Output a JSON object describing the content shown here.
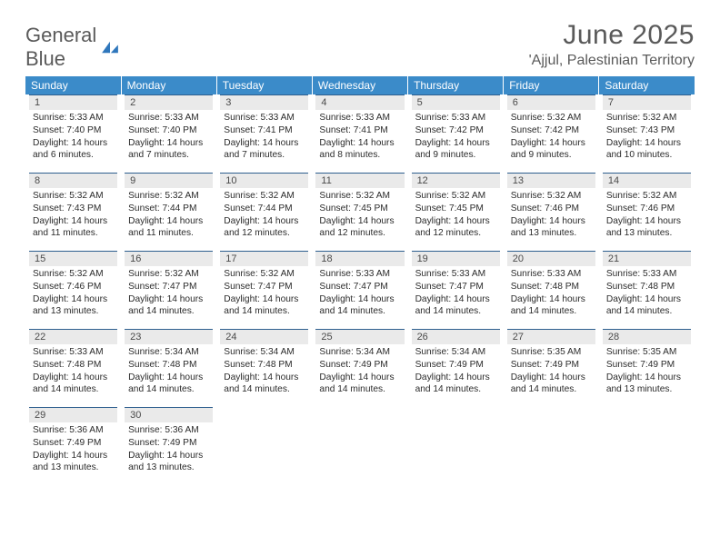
{
  "brand": {
    "name_a": "General",
    "name_b": "Blue"
  },
  "title": "June 2025",
  "location": "'Ajjul, Palestinian Territory",
  "colors": {
    "header_bg": "#3b8bc9",
    "header_text": "#ffffff",
    "daynum_bg": "#eaeaea",
    "rule": "#2e5f8f",
    "brand_gray": "#5a5a5a",
    "brand_blue": "#2f77bc"
  },
  "weekdays": [
    "Sunday",
    "Monday",
    "Tuesday",
    "Wednesday",
    "Thursday",
    "Friday",
    "Saturday"
  ],
  "days": [
    {
      "n": "1",
      "sr": "5:33 AM",
      "ss": "7:40 PM",
      "dl": "14 hours and 6 minutes."
    },
    {
      "n": "2",
      "sr": "5:33 AM",
      "ss": "7:40 PM",
      "dl": "14 hours and 7 minutes."
    },
    {
      "n": "3",
      "sr": "5:33 AM",
      "ss": "7:41 PM",
      "dl": "14 hours and 7 minutes."
    },
    {
      "n": "4",
      "sr": "5:33 AM",
      "ss": "7:41 PM",
      "dl": "14 hours and 8 minutes."
    },
    {
      "n": "5",
      "sr": "5:33 AM",
      "ss": "7:42 PM",
      "dl": "14 hours and 9 minutes."
    },
    {
      "n": "6",
      "sr": "5:32 AM",
      "ss": "7:42 PM",
      "dl": "14 hours and 9 minutes."
    },
    {
      "n": "7",
      "sr": "5:32 AM",
      "ss": "7:43 PM",
      "dl": "14 hours and 10 minutes."
    },
    {
      "n": "8",
      "sr": "5:32 AM",
      "ss": "7:43 PM",
      "dl": "14 hours and 11 minutes."
    },
    {
      "n": "9",
      "sr": "5:32 AM",
      "ss": "7:44 PM",
      "dl": "14 hours and 11 minutes."
    },
    {
      "n": "10",
      "sr": "5:32 AM",
      "ss": "7:44 PM",
      "dl": "14 hours and 12 minutes."
    },
    {
      "n": "11",
      "sr": "5:32 AM",
      "ss": "7:45 PM",
      "dl": "14 hours and 12 minutes."
    },
    {
      "n": "12",
      "sr": "5:32 AM",
      "ss": "7:45 PM",
      "dl": "14 hours and 12 minutes."
    },
    {
      "n": "13",
      "sr": "5:32 AM",
      "ss": "7:46 PM",
      "dl": "14 hours and 13 minutes."
    },
    {
      "n": "14",
      "sr": "5:32 AM",
      "ss": "7:46 PM",
      "dl": "14 hours and 13 minutes."
    },
    {
      "n": "15",
      "sr": "5:32 AM",
      "ss": "7:46 PM",
      "dl": "14 hours and 13 minutes."
    },
    {
      "n": "16",
      "sr": "5:32 AM",
      "ss": "7:47 PM",
      "dl": "14 hours and 14 minutes."
    },
    {
      "n": "17",
      "sr": "5:32 AM",
      "ss": "7:47 PM",
      "dl": "14 hours and 14 minutes."
    },
    {
      "n": "18",
      "sr": "5:33 AM",
      "ss": "7:47 PM",
      "dl": "14 hours and 14 minutes."
    },
    {
      "n": "19",
      "sr": "5:33 AM",
      "ss": "7:47 PM",
      "dl": "14 hours and 14 minutes."
    },
    {
      "n": "20",
      "sr": "5:33 AM",
      "ss": "7:48 PM",
      "dl": "14 hours and 14 minutes."
    },
    {
      "n": "21",
      "sr": "5:33 AM",
      "ss": "7:48 PM",
      "dl": "14 hours and 14 minutes."
    },
    {
      "n": "22",
      "sr": "5:33 AM",
      "ss": "7:48 PM",
      "dl": "14 hours and 14 minutes."
    },
    {
      "n": "23",
      "sr": "5:34 AM",
      "ss": "7:48 PM",
      "dl": "14 hours and 14 minutes."
    },
    {
      "n": "24",
      "sr": "5:34 AM",
      "ss": "7:48 PM",
      "dl": "14 hours and 14 minutes."
    },
    {
      "n": "25",
      "sr": "5:34 AM",
      "ss": "7:49 PM",
      "dl": "14 hours and 14 minutes."
    },
    {
      "n": "26",
      "sr": "5:34 AM",
      "ss": "7:49 PM",
      "dl": "14 hours and 14 minutes."
    },
    {
      "n": "27",
      "sr": "5:35 AM",
      "ss": "7:49 PM",
      "dl": "14 hours and 14 minutes."
    },
    {
      "n": "28",
      "sr": "5:35 AM",
      "ss": "7:49 PM",
      "dl": "14 hours and 13 minutes."
    },
    {
      "n": "29",
      "sr": "5:36 AM",
      "ss": "7:49 PM",
      "dl": "14 hours and 13 minutes."
    },
    {
      "n": "30",
      "sr": "5:36 AM",
      "ss": "7:49 PM",
      "dl": "14 hours and 13 minutes."
    }
  ],
  "labels": {
    "sunrise": "Sunrise:",
    "sunset": "Sunset:",
    "daylight": "Daylight:"
  }
}
